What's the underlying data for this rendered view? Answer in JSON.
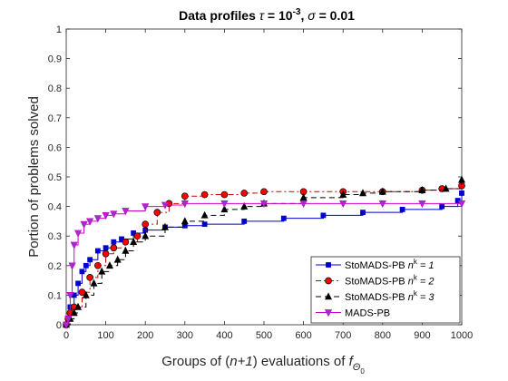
{
  "chart_data": {
    "type": "line",
    "title": {
      "prefix": "Data profiles ",
      "tau_symbol": "τ",
      "tau_eq": " = 10",
      "tau_exp": "-3",
      "sep": ", ",
      "sigma_symbol": "σ",
      "sigma_eq": " = 0.01"
    },
    "xlabel": {
      "part1": "Groups of (",
      "italic": "n+1",
      "part2": ") evaluations of ",
      "f": "f",
      "sub": "Θ",
      "subsub": "0"
    },
    "ylabel": "Portion of problems solved",
    "xlim": [
      0,
      1000
    ],
    "ylim": [
      0,
      1
    ],
    "xticks": [
      "0",
      "100",
      "200",
      "300",
      "400",
      "500",
      "600",
      "700",
      "800",
      "900",
      "1000"
    ],
    "yticks": [
      "0",
      "0.1",
      "0.2",
      "0.3",
      "0.4",
      "0.5",
      "0.6",
      "0.7",
      "0.8",
      "0.9",
      "1"
    ],
    "grid": false,
    "legend_position": "bottom-right",
    "series": [
      {
        "name_prefix": "StoMADS-PB ",
        "name_n": "n",
        "name_k": "k",
        "name_suffix": " = 1",
        "color": "#0000CC",
        "dash": "none",
        "marker": "square",
        "points": [
          [
            0,
            0.0
          ],
          [
            5,
            0.02
          ],
          [
            10,
            0.06
          ],
          [
            20,
            0.1
          ],
          [
            30,
            0.14
          ],
          [
            40,
            0.18
          ],
          [
            50,
            0.2
          ],
          [
            60,
            0.22
          ],
          [
            80,
            0.25
          ],
          [
            100,
            0.26
          ],
          [
            120,
            0.28
          ],
          [
            140,
            0.29
          ],
          [
            170,
            0.31
          ],
          [
            200,
            0.32
          ],
          [
            250,
            0.33
          ],
          [
            300,
            0.335
          ],
          [
            350,
            0.34
          ],
          [
            450,
            0.35
          ],
          [
            550,
            0.36
          ],
          [
            650,
            0.37
          ],
          [
            750,
            0.38
          ],
          [
            850,
            0.39
          ],
          [
            950,
            0.4
          ],
          [
            990,
            0.42
          ],
          [
            1000,
            0.445
          ]
        ]
      },
      {
        "name_prefix": "StoMADS-PB ",
        "name_n": "n",
        "name_k": "k",
        "name_suffix": " = 2",
        "color": "#CC0000",
        "dash": "6,3,2,3",
        "marker": "circle",
        "points": [
          [
            0,
            0.0
          ],
          [
            5,
            0.02
          ],
          [
            10,
            0.04
          ],
          [
            20,
            0.06
          ],
          [
            40,
            0.11
          ],
          [
            60,
            0.16
          ],
          [
            80,
            0.2
          ],
          [
            100,
            0.24
          ],
          [
            120,
            0.26
          ],
          [
            150,
            0.28
          ],
          [
            180,
            0.3
          ],
          [
            200,
            0.34
          ],
          [
            230,
            0.38
          ],
          [
            260,
            0.41
          ],
          [
            300,
            0.435
          ],
          [
            350,
            0.44
          ],
          [
            400,
            0.44
          ],
          [
            450,
            0.445
          ],
          [
            500,
            0.45
          ],
          [
            600,
            0.45
          ],
          [
            700,
            0.45
          ],
          [
            800,
            0.45
          ],
          [
            900,
            0.455
          ],
          [
            950,
            0.46
          ],
          [
            1000,
            0.47
          ]
        ]
      },
      {
        "name_prefix": "StoMADS-PB ",
        "name_n": "n",
        "name_k": "k",
        "name_suffix": " = 3",
        "color": "#000000",
        "dash": "6,4",
        "marker": "triangle",
        "points": [
          [
            0,
            0.0
          ],
          [
            10,
            0.02
          ],
          [
            20,
            0.04
          ],
          [
            30,
            0.06
          ],
          [
            50,
            0.1
          ],
          [
            70,
            0.14
          ],
          [
            90,
            0.18
          ],
          [
            110,
            0.2
          ],
          [
            130,
            0.22
          ],
          [
            150,
            0.25
          ],
          [
            170,
            0.28
          ],
          [
            200,
            0.3
          ],
          [
            250,
            0.33
          ],
          [
            300,
            0.35
          ],
          [
            350,
            0.37
          ],
          [
            400,
            0.39
          ],
          [
            450,
            0.4
          ],
          [
            500,
            0.41
          ],
          [
            600,
            0.43
          ],
          [
            700,
            0.44
          ],
          [
            750,
            0.445
          ],
          [
            800,
            0.45
          ],
          [
            900,
            0.455
          ],
          [
            960,
            0.46
          ],
          [
            1000,
            0.49
          ]
        ]
      },
      {
        "name_prefix": "MADS-PB",
        "name_n": "",
        "name_k": "",
        "name_suffix": "",
        "color": "#CC00CC",
        "dash": "none",
        "marker": "triangle-down",
        "points": [
          [
            0,
            0.0
          ],
          [
            5,
            0.02
          ],
          [
            10,
            0.1
          ],
          [
            15,
            0.2
          ],
          [
            20,
            0.27
          ],
          [
            30,
            0.31
          ],
          [
            45,
            0.34
          ],
          [
            60,
            0.35
          ],
          [
            80,
            0.36
          ],
          [
            100,
            0.37
          ],
          [
            120,
            0.375
          ],
          [
            150,
            0.385
          ],
          [
            200,
            0.4
          ],
          [
            250,
            0.405
          ],
          [
            300,
            0.41
          ],
          [
            400,
            0.41
          ],
          [
            500,
            0.41
          ],
          [
            600,
            0.41
          ],
          [
            700,
            0.41
          ],
          [
            800,
            0.41
          ],
          [
            900,
            0.41
          ],
          [
            1000,
            0.41
          ]
        ]
      }
    ]
  }
}
